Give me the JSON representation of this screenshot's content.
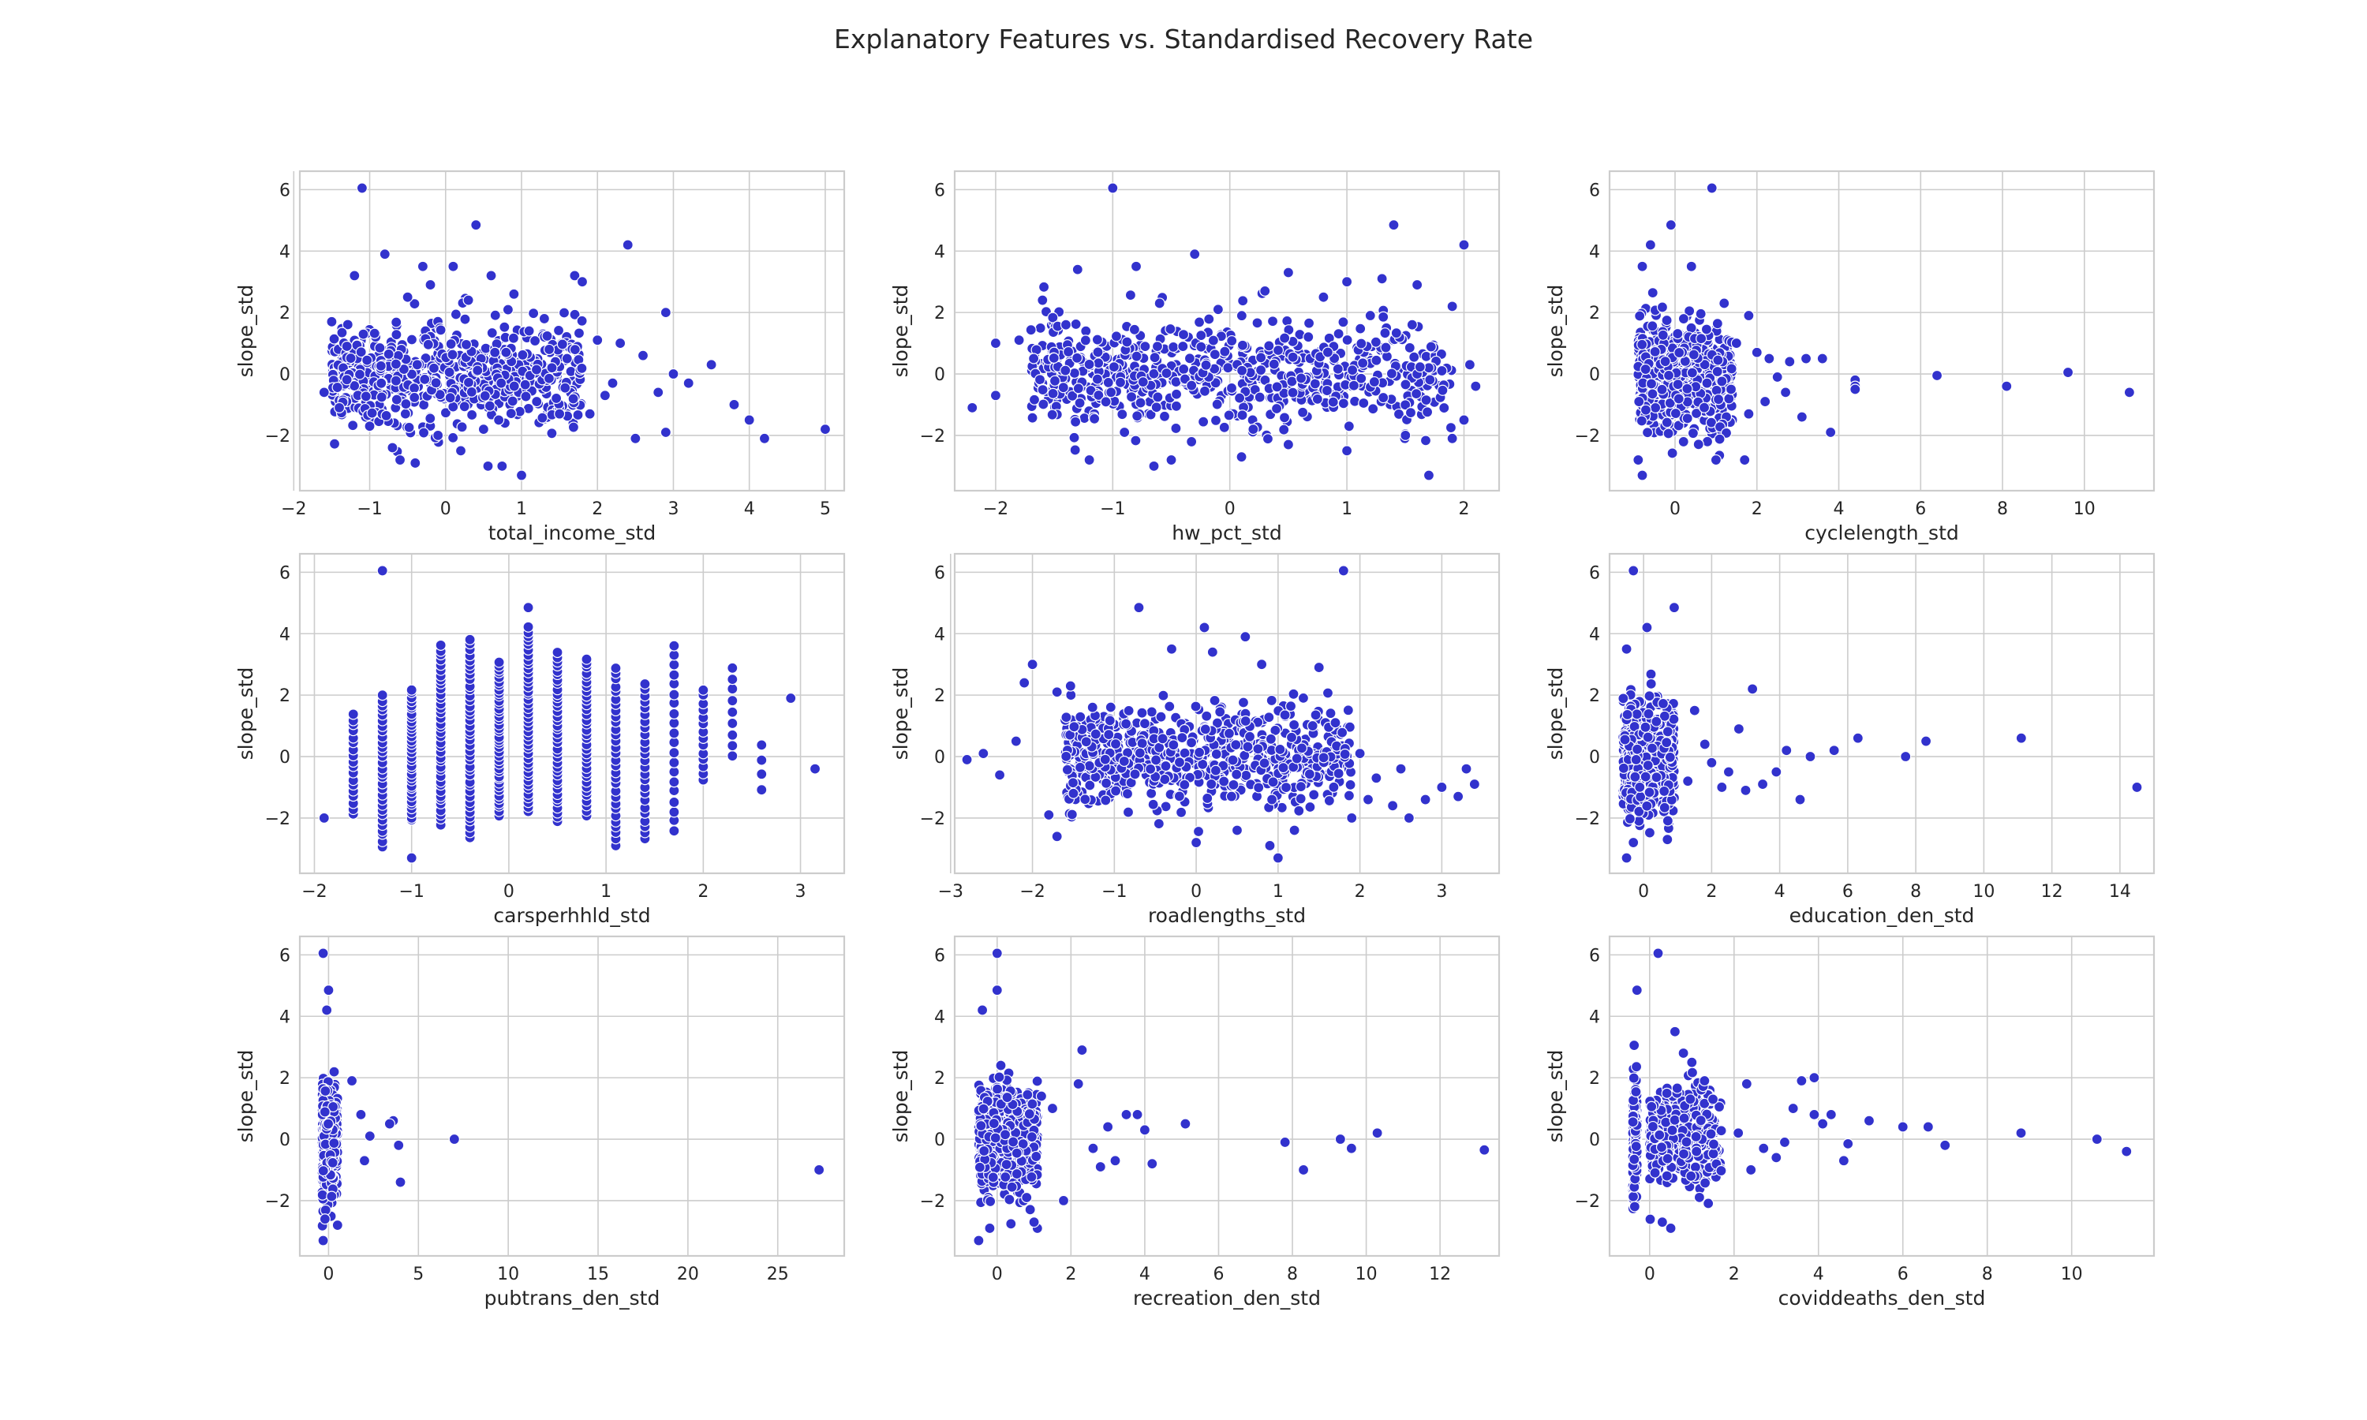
{
  "figure_title": "Explanatory Features vs. Standardised Recovery Rate",
  "colors": {
    "points": "#3232cd",
    "grid": "#cccccc",
    "text": "#262626"
  },
  "chart_data": [
    {
      "type": "scatter",
      "xlabel": "total_income_std",
      "ylabel": "slope_std",
      "xlim": [
        -1.92,
        5.25
      ],
      "ylim": [
        -3.8,
        6.6
      ],
      "xticks": [
        -2,
        -1,
        0,
        1,
        2,
        3,
        4,
        5
      ],
      "yticks": [
        -2,
        0,
        2,
        4,
        6
      ],
      "points": [
        [
          -1.1,
          6.05
        ],
        [
          0.4,
          4.85
        ],
        [
          2.4,
          4.2
        ],
        [
          -0.8,
          3.9
        ],
        [
          -0.3,
          3.5
        ],
        [
          0.1,
          3.5
        ],
        [
          0.6,
          3.2
        ],
        [
          1.7,
          3.2
        ],
        [
          1.8,
          3.0
        ],
        [
          -1.2,
          3.2
        ],
        [
          0.9,
          2.6
        ],
        [
          0.3,
          2.4
        ],
        [
          2.9,
          2.0
        ],
        [
          -0.5,
          2.5
        ],
        [
          1.3,
          1.8
        ],
        [
          -1.5,
          1.7
        ],
        [
          2.3,
          1.0
        ],
        [
          2.6,
          0.6
        ],
        [
          3.0,
          0.0
        ],
        [
          3.5,
          0.3
        ],
        [
          3.2,
          -0.3
        ],
        [
          2.8,
          -0.6
        ],
        [
          3.8,
          -1.0
        ],
        [
          4.0,
          -1.5
        ],
        [
          4.2,
          -2.1
        ],
        [
          5.0,
          -1.8
        ],
        [
          2.5,
          -2.1
        ],
        [
          2.9,
          -1.9
        ],
        [
          1.0,
          -3.3
        ],
        [
          -0.6,
          -2.8
        ],
        [
          -0.4,
          -2.9
        ],
        [
          -0.7,
          -2.4
        ],
        [
          0.2,
          -2.5
        ],
        [
          -1.4,
          -1.1
        ],
        [
          -1.6,
          -0.6
        ],
        [
          -1.3,
          0.9
        ],
        [
          1.5,
          -1.3
        ],
        [
          1.9,
          -1.3
        ],
        [
          2.1,
          -0.7
        ],
        [
          0.5,
          -1.8
        ],
        [
          0.7,
          -1.5
        ],
        [
          -0.1,
          -2.0
        ],
        [
          -1.0,
          -1.7
        ],
        [
          1.2,
          -0.9
        ],
        [
          2.2,
          -0.3
        ],
        [
          1.6,
          0.5
        ],
        [
          1.4,
          0.2
        ],
        [
          2.0,
          1.1
        ],
        [
          1.1,
          1.4
        ],
        [
          -0.2,
          2.9
        ]
      ],
      "clusters": [
        [
          -1.5,
          1.8,
          0.0,
          1.1,
          650
        ]
      ]
    },
    {
      "type": "scatter",
      "xlabel": "hw_pct_std",
      "ylabel": "slope_std",
      "xlim": [
        -2.35,
        2.3
      ],
      "ylim": [
        -3.8,
        6.6
      ],
      "xticks": [
        -2,
        -1,
        0,
        1,
        2
      ],
      "yticks": [
        -2,
        0,
        2,
        4,
        6
      ],
      "points": [
        [
          -1.0,
          6.05
        ],
        [
          1.4,
          4.85
        ],
        [
          2.0,
          4.2
        ],
        [
          -0.3,
          3.9
        ],
        [
          -1.3,
          3.4
        ],
        [
          -0.8,
          3.5
        ],
        [
          0.5,
          3.3
        ],
        [
          1.3,
          3.1
        ],
        [
          1.6,
          2.9
        ],
        [
          -1.6,
          2.4
        ],
        [
          1.9,
          2.2
        ],
        [
          -2.0,
          1.0
        ],
        [
          -1.8,
          1.1
        ],
        [
          -2.2,
          -1.1
        ],
        [
          -2.0,
          -0.7
        ],
        [
          -1.2,
          -2.8
        ],
        [
          -0.5,
          -2.8
        ],
        [
          0.1,
          -2.7
        ],
        [
          0.5,
          -2.3
        ],
        [
          1.7,
          -3.3
        ],
        [
          1.9,
          -2.1
        ],
        [
          2.0,
          -1.5
        ],
        [
          2.1,
          -0.4
        ],
        [
          2.05,
          0.3
        ],
        [
          1.5,
          -2.0
        ],
        [
          1.0,
          -2.5
        ],
        [
          -0.9,
          -1.9
        ],
        [
          1.2,
          1.9
        ],
        [
          0.8,
          2.5
        ],
        [
          -0.1,
          2.1
        ],
        [
          -1.4,
          1.6
        ],
        [
          0.2,
          -1.8
        ],
        [
          1.0,
          3.0
        ],
        [
          0.3,
          2.7
        ],
        [
          -0.6,
          2.3
        ]
      ],
      "clusters": [
        [
          -1.7,
          1.9,
          0.0,
          1.1,
          650
        ]
      ]
    },
    {
      "type": "scatter",
      "xlabel": "cyclelength_std",
      "ylabel": "slope_std",
      "xlim": [
        -1.6,
        11.7
      ],
      "ylim": [
        -3.8,
        6.6
      ],
      "xticks": [
        0,
        2,
        4,
        6,
        8,
        10
      ],
      "yticks": [
        -2,
        0,
        2,
        4,
        6
      ],
      "points": [
        [
          0.9,
          6.05
        ],
        [
          -0.1,
          4.85
        ],
        [
          -0.6,
          4.2
        ],
        [
          0.4,
          3.5
        ],
        [
          -0.8,
          3.5
        ],
        [
          1.2,
          2.3
        ],
        [
          1.8,
          1.9
        ],
        [
          2.3,
          0.5
        ],
        [
          2.8,
          0.4
        ],
        [
          3.2,
          0.5
        ],
        [
          3.6,
          0.5
        ],
        [
          4.4,
          -0.2
        ],
        [
          4.4,
          -0.4
        ],
        [
          4.4,
          -0.5
        ],
        [
          6.4,
          -0.05
        ],
        [
          8.1,
          -0.4
        ],
        [
          9.6,
          0.05
        ],
        [
          11.1,
          -0.6
        ],
        [
          3.8,
          -1.9
        ],
        [
          3.1,
          -1.4
        ],
        [
          2.2,
          -0.9
        ],
        [
          1.8,
          -1.3
        ],
        [
          1.7,
          -2.8
        ],
        [
          1.0,
          -2.8
        ],
        [
          -0.9,
          -2.8
        ],
        [
          -0.8,
          -3.3
        ],
        [
          2.7,
          -0.6
        ],
        [
          2.0,
          0.7
        ],
        [
          1.5,
          1.0
        ],
        [
          2.5,
          -0.1
        ]
      ],
      "clusters": [
        [
          -0.9,
          1.4,
          0.0,
          1.1,
          650
        ]
      ]
    },
    {
      "type": "scatter",
      "xlabel": "carsperhhld_std",
      "ylabel": "slope_std",
      "xlim": [
        -2.15,
        3.45
      ],
      "ylim": [
        -3.8,
        6.6
      ],
      "xticks": [
        -2,
        -1,
        0,
        1,
        2,
        3
      ],
      "yticks": [
        -2,
        0,
        2,
        4,
        6
      ],
      "columns": [
        [
          -1.9,
          -2.0,
          -2.0,
          1
        ],
        [
          -1.6,
          -1.9,
          1.4,
          18
        ],
        [
          -1.3,
          -2.9,
          2.0,
          30
        ],
        [
          -1.0,
          -2.1,
          2.2,
          34
        ],
        [
          -0.7,
          -2.2,
          3.6,
          38
        ],
        [
          -0.4,
          -2.6,
          3.8,
          40
        ],
        [
          -0.1,
          -1.9,
          3.1,
          40
        ],
        [
          0.2,
          -1.8,
          4.2,
          42
        ],
        [
          0.5,
          -2.1,
          3.4,
          38
        ],
        [
          0.8,
          -1.9,
          3.2,
          34
        ],
        [
          1.1,
          -2.9,
          2.9,
          30
        ],
        [
          1.4,
          -2.7,
          2.4,
          25
        ],
        [
          1.7,
          -2.4,
          3.6,
          20
        ],
        [
          2.0,
          -0.8,
          2.2,
          14
        ],
        [
          2.3,
          0.0,
          2.9,
          9
        ],
        [
          2.6,
          -1.1,
          0.4,
          4
        ],
        [
          2.9,
          1.9,
          1.9,
          1
        ],
        [
          3.15,
          -0.4,
          -0.4,
          1
        ]
      ],
      "points": [
        [
          -1.3,
          6.05
        ],
        [
          0.2,
          4.85
        ],
        [
          -1.0,
          -3.3
        ]
      ],
      "clusters": []
    },
    {
      "type": "scatter",
      "xlabel": "roadlengths_std",
      "ylabel": "slope_std",
      "xlim": [
        -2.95,
        3.7
      ],
      "ylim": [
        -3.8,
        6.6
      ],
      "xticks": [
        -3,
        -2,
        -1,
        0,
        1,
        2,
        3
      ],
      "yticks": [
        -2,
        0,
        2,
        4,
        6
      ],
      "points": [
        [
          1.8,
          6.05
        ],
        [
          -0.7,
          4.85
        ],
        [
          0.1,
          4.2
        ],
        [
          0.6,
          3.9
        ],
        [
          -0.3,
          3.5
        ],
        [
          0.2,
          3.4
        ],
        [
          0.8,
          3.0
        ],
        [
          1.5,
          2.9
        ],
        [
          -2.0,
          3.0
        ],
        [
          -2.1,
          2.4
        ],
        [
          -1.7,
          2.1
        ],
        [
          -2.6,
          0.1
        ],
        [
          -2.8,
          -0.1
        ],
        [
          -2.4,
          -0.6
        ],
        [
          -1.7,
          -2.6
        ],
        [
          -1.8,
          -1.9
        ],
        [
          0.0,
          -2.8
        ],
        [
          0.5,
          -2.4
        ],
        [
          0.9,
          -2.9
        ],
        [
          1.0,
          -3.3
        ],
        [
          1.2,
          -2.4
        ],
        [
          1.9,
          -2.0
        ],
        [
          2.4,
          -1.6
        ],
        [
          2.6,
          -2.0
        ],
        [
          2.8,
          -1.4
        ],
        [
          3.0,
          -1.0
        ],
        [
          3.2,
          -1.3
        ],
        [
          3.3,
          -0.4
        ],
        [
          3.4,
          -0.9
        ],
        [
          2.2,
          -0.7
        ],
        [
          2.5,
          -0.4
        ],
        [
          2.0,
          0.1
        ],
        [
          1.7,
          1.1
        ],
        [
          2.1,
          -1.4
        ],
        [
          -2.2,
          0.5
        ],
        [
          -1.5,
          -1.2
        ]
      ],
      "clusters": [
        [
          -1.6,
          1.9,
          0.0,
          1.1,
          650
        ]
      ]
    },
    {
      "type": "scatter",
      "xlabel": "education_den_std",
      "ylabel": "slope_std",
      "xlim": [
        -1.0,
        15.0
      ],
      "ylim": [
        -3.8,
        6.6
      ],
      "xticks": [
        0,
        2,
        4,
        6,
        8,
        10,
        12,
        14
      ],
      "yticks": [
        -2,
        0,
        2,
        4,
        6
      ],
      "points": [
        [
          -0.3,
          6.05
        ],
        [
          0.9,
          4.85
        ],
        [
          0.1,
          4.2
        ],
        [
          -0.5,
          3.5
        ],
        [
          3.2,
          2.2
        ],
        [
          1.5,
          1.5
        ],
        [
          2.8,
          0.9
        ],
        [
          4.2,
          0.2
        ],
        [
          4.9,
          0.0
        ],
        [
          5.6,
          0.2
        ],
        [
          6.3,
          0.6
        ],
        [
          7.7,
          0.0
        ],
        [
          8.3,
          0.5
        ],
        [
          11.1,
          0.6
        ],
        [
          14.5,
          -1.0
        ],
        [
          4.6,
          -1.4
        ],
        [
          3.9,
          -0.5
        ],
        [
          3.5,
          -0.9
        ],
        [
          2.5,
          -0.5
        ],
        [
          2.0,
          -0.2
        ],
        [
          3.0,
          -1.1
        ],
        [
          0.7,
          -2.7
        ],
        [
          -0.5,
          -3.3
        ],
        [
          -0.3,
          -2.8
        ],
        [
          1.3,
          -0.8
        ],
        [
          2.3,
          -1.0
        ],
        [
          1.8,
          0.4
        ]
      ],
      "clusters": [
        [
          -0.6,
          0.9,
          0.0,
          1.1,
          650
        ]
      ]
    },
    {
      "type": "scatter",
      "xlabel": "pubtrans_den_std",
      "ylabel": "slope_std",
      "xlim": [
        -1.6,
        28.7
      ],
      "ylim": [
        -3.8,
        6.6
      ],
      "xticks": [
        0,
        5,
        10,
        15,
        20,
        25
      ],
      "yticks": [
        -2,
        0,
        2,
        4,
        6
      ],
      "points": [
        [
          -0.3,
          6.05
        ],
        [
          0.0,
          4.85
        ],
        [
          -0.1,
          4.2
        ],
        [
          1.3,
          1.9
        ],
        [
          3.6,
          0.6
        ],
        [
          3.4,
          0.5
        ],
        [
          3.9,
          -0.2
        ],
        [
          4.0,
          -1.4
        ],
        [
          7.0,
          0.0
        ],
        [
          27.3,
          -1.0
        ],
        [
          0.5,
          -2.8
        ],
        [
          -0.3,
          -3.3
        ],
        [
          -0.2,
          -2.6
        ],
        [
          2.3,
          0.1
        ],
        [
          2.0,
          -0.7
        ],
        [
          1.8,
          0.8
        ]
      ],
      "clusters": [
        [
          -0.35,
          0.5,
          0.0,
          1.1,
          550
        ]
      ]
    },
    {
      "type": "scatter",
      "xlabel": "recreation_den_std",
      "ylabel": "slope_std",
      "xlim": [
        -1.15,
        13.6
      ],
      "ylim": [
        -3.8,
        6.6
      ],
      "xticks": [
        0,
        2,
        4,
        6,
        8,
        10,
        12
      ],
      "yticks": [
        -2,
        0,
        2,
        4,
        6
      ],
      "points": [
        [
          0.0,
          6.05
        ],
        [
          0.0,
          4.85
        ],
        [
          -0.4,
          4.2
        ],
        [
          2.3,
          2.9
        ],
        [
          2.2,
          1.8
        ],
        [
          1.8,
          -2.0
        ],
        [
          1.0,
          -2.7
        ],
        [
          -0.2,
          -2.9
        ],
        [
          -0.5,
          -3.3
        ],
        [
          3.5,
          0.8
        ],
        [
          3.8,
          0.8
        ],
        [
          4.0,
          0.3
        ],
        [
          5.1,
          0.5
        ],
        [
          4.2,
          -0.8
        ],
        [
          3.2,
          -0.7
        ],
        [
          2.8,
          -0.9
        ],
        [
          7.8,
          -0.1
        ],
        [
          8.3,
          -1.0
        ],
        [
          9.3,
          0.0
        ],
        [
          9.6,
          -0.3
        ],
        [
          10.3,
          0.2
        ],
        [
          13.2,
          -0.35
        ],
        [
          2.6,
          -0.3
        ],
        [
          3.0,
          0.4
        ],
        [
          1.5,
          1.0
        ],
        [
          1.2,
          1.4
        ],
        [
          0.8,
          -1.9
        ]
      ],
      "clusters": [
        [
          -0.5,
          1.1,
          0.0,
          1.1,
          600
        ]
      ]
    },
    {
      "type": "scatter",
      "xlabel": "coviddeaths_den_std",
      "ylabel": "slope_std",
      "xlim": [
        -0.95,
        11.95
      ],
      "ylim": [
        -3.8,
        6.6
      ],
      "xticks": [
        0,
        2,
        4,
        6,
        8,
        10
      ],
      "yticks": [
        -2,
        0,
        2,
        4,
        6
      ],
      "points": [
        [
          0.2,
          6.05
        ],
        [
          -0.3,
          4.85
        ],
        [
          0.6,
          3.5
        ],
        [
          1.0,
          2.5
        ],
        [
          1.3,
          1.9
        ],
        [
          2.3,
          1.8
        ],
        [
          3.6,
          1.9
        ],
        [
          3.9,
          2.0
        ],
        [
          3.4,
          1.0
        ],
        [
          3.9,
          0.8
        ],
        [
          4.3,
          0.8
        ],
        [
          4.1,
          0.5
        ],
        [
          4.7,
          -0.15
        ],
        [
          4.6,
          -0.7
        ],
        [
          5.2,
          0.6
        ],
        [
          6.0,
          0.4
        ],
        [
          6.6,
          0.4
        ],
        [
          7.0,
          -0.2
        ],
        [
          8.8,
          0.2
        ],
        [
          10.6,
          0.0
        ],
        [
          11.3,
          -0.4
        ],
        [
          3.0,
          -0.6
        ],
        [
          2.7,
          -0.3
        ],
        [
          2.4,
          -1.0
        ],
        [
          0.5,
          -2.9
        ],
        [
          0.3,
          -2.7
        ],
        [
          1.5,
          1.3
        ],
        [
          0.8,
          2.8
        ],
        [
          2.1,
          0.2
        ],
        [
          3.2,
          -0.1
        ]
      ],
      "clusters": [
        [
          -0.4,
          -0.3,
          0.0,
          1.2,
          250
        ],
        [
          0.0,
          1.7,
          0.1,
          1.0,
          380
        ]
      ]
    }
  ]
}
